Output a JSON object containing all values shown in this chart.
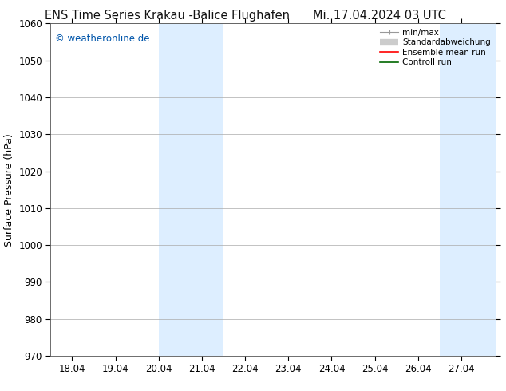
{
  "title_left": "ENS Time Series Krakau -Balice Flughafen",
  "title_right": "Mi. 17.04.2024 03 UTC",
  "ylabel": "Surface Pressure (hPa)",
  "ylim": [
    970,
    1060
  ],
  "yticks": [
    970,
    980,
    990,
    1000,
    1010,
    1020,
    1030,
    1040,
    1050,
    1060
  ],
  "xtick_labels": [
    "18.04",
    "19.04",
    "20.04",
    "21.04",
    "22.04",
    "23.04",
    "24.04",
    "25.04",
    "26.04",
    "27.04"
  ],
  "xtick_positions": [
    1,
    2,
    3,
    4,
    5,
    6,
    7,
    8,
    9,
    10
  ],
  "xlim": [
    0.5,
    10.8
  ],
  "shaded_regions": [
    {
      "xmin": 3.0,
      "xmax": 4.5,
      "color": "#ddeeff"
    },
    {
      "xmin": 9.5,
      "xmax": 10.8,
      "color": "#ddeeff"
    }
  ],
  "watermark": "© weatheronline.de",
  "watermark_color": "#0055aa",
  "bg_color": "#ffffff",
  "plot_bg_color": "#ffffff",
  "grid_color": "#aaaaaa",
  "title_fontsize": 10.5,
  "axis_label_fontsize": 9,
  "tick_fontsize": 8.5
}
